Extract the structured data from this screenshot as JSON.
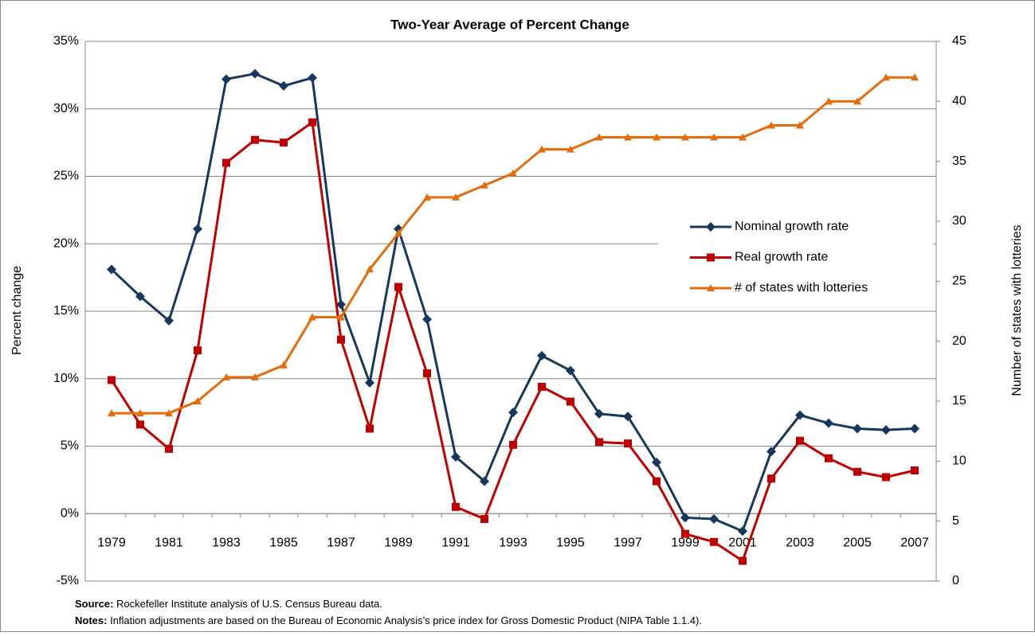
{
  "chart_data": {
    "type": "line",
    "title": "Two-Year Average of Percent Change",
    "y_label": "Percent change",
    "y2_label": "Number of states  with  lotteries",
    "categories": [
      "1979",
      null,
      "1981",
      null,
      "1983",
      null,
      "1985",
      null,
      "1987",
      null,
      "1989",
      null,
      "1991",
      null,
      "1993",
      null,
      "1995",
      null,
      "1997",
      null,
      "1999",
      null,
      "2001",
      null,
      "2003",
      null,
      "2005",
      null,
      "2007"
    ],
    "series": [
      {
        "name": "Nominal growth rate",
        "color": "#17375e",
        "marker": "diamond",
        "values": [
          18.1,
          16.1,
          14.3,
          21.1,
          32.2,
          32.6,
          31.7,
          32.3,
          15.5,
          9.7,
          21.1,
          14.4,
          4.2,
          2.4,
          7.5,
          11.7,
          10.6,
          7.4,
          7.2,
          3.8,
          -0.3,
          -0.4,
          -1.3,
          4.6,
          7.3,
          6.7,
          6.3,
          6.2,
          6.3
        ]
      },
      {
        "name": "Real growth rate",
        "color": "#c00000",
        "marker": "square",
        "values": [
          9.9,
          6.6,
          4.8,
          12.1,
          26.0,
          27.7,
          27.5,
          29.0,
          12.9,
          6.3,
          16.8,
          10.4,
          0.5,
          -0.4,
          5.1,
          9.4,
          8.3,
          5.3,
          5.2,
          2.4,
          -1.5,
          -2.1,
          -3.5,
          2.6,
          5.4,
          4.1,
          3.1,
          2.7,
          3.2
        ]
      },
      {
        "name": "# of states with lotteries",
        "color": "#e46c0a",
        "marker": "triangle",
        "axis": "y2",
        "values": [
          14,
          14,
          14,
          15,
          17,
          17,
          18,
          22,
          22,
          26,
          29,
          32,
          32,
          33,
          34,
          36,
          36,
          37,
          37,
          37,
          37,
          37,
          37,
          38,
          38,
          40,
          40,
          42,
          42
        ]
      }
    ],
    "ylim": [
      -5,
      35
    ],
    "yticks": [
      {
        "value": -5,
        "label": "-5%"
      },
      {
        "value": 0,
        "label": "0%"
      },
      {
        "value": 5,
        "label": "5%"
      },
      {
        "value": 10,
        "label": "10%"
      },
      {
        "value": 15,
        "label": "15%"
      },
      {
        "value": 20,
        "label": "20%"
      },
      {
        "value": 25,
        "label": "25%"
      },
      {
        "value": 30,
        "label": "30%"
      },
      {
        "value": 35,
        "label": "35%"
      }
    ],
    "y2lim": [
      0,
      45
    ],
    "y2ticks": [
      0,
      5,
      10,
      15,
      20,
      25,
      30,
      35,
      40,
      45
    ],
    "grid": true,
    "legend": "right",
    "source_label": "Source:",
    "source": "Rockefeller Institute analysis of U.S. Census Bureau data.",
    "notes_label": "Notes:",
    "notes": "Inflation adjustments are based on the Bureau of Economic Analysis’s price index for Gross Domestic Product (NIPA Table 1.1.4)."
  }
}
